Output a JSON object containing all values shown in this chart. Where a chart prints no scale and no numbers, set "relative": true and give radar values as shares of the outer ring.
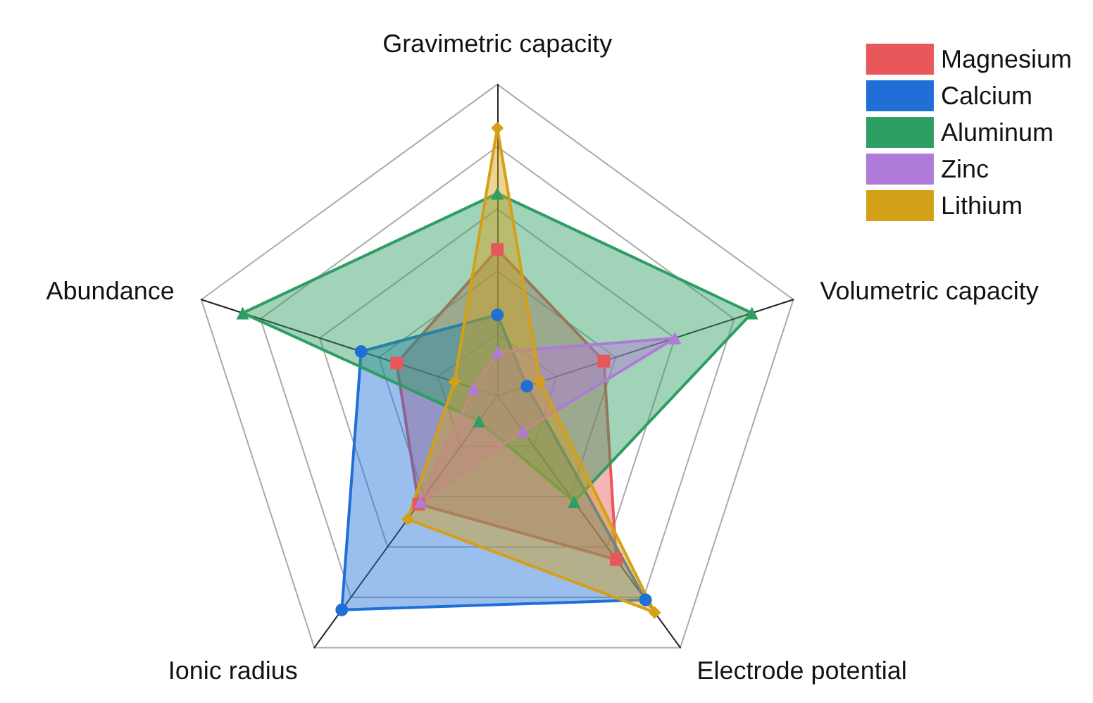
{
  "chart_data": {
    "type": "radar",
    "relative": true,
    "categories": [
      "Gravimetric capacity",
      "Volumetric capacity",
      "Electrode potential",
      "Ionic radius",
      "Abundance"
    ],
    "series": [
      {
        "name": "Magnesium",
        "color": "#e8585a",
        "marker": "square",
        "values": [
          0.47,
          0.36,
          0.65,
          0.43,
          0.34
        ]
      },
      {
        "name": "Calcium",
        "color": "#1f6fd6",
        "marker": "circle",
        "values": [
          0.26,
          0.1,
          0.81,
          0.85,
          0.46
        ]
      },
      {
        "name": "Aluminum",
        "color": "#2e9e62",
        "marker": "triangle",
        "values": [
          0.65,
          0.86,
          0.42,
          0.1,
          0.86
        ]
      },
      {
        "name": "Zinc",
        "color": "#b07ad8",
        "marker": "triangle",
        "values": [
          0.14,
          0.6,
          0.14,
          0.42,
          0.08
        ]
      },
      {
        "name": "Lithium",
        "color": "#d4a017",
        "marker": "diamond",
        "values": [
          0.86,
          0.145,
          0.86,
          0.49,
          0.145
        ]
      }
    ],
    "legend": "top right",
    "grid": true
  }
}
